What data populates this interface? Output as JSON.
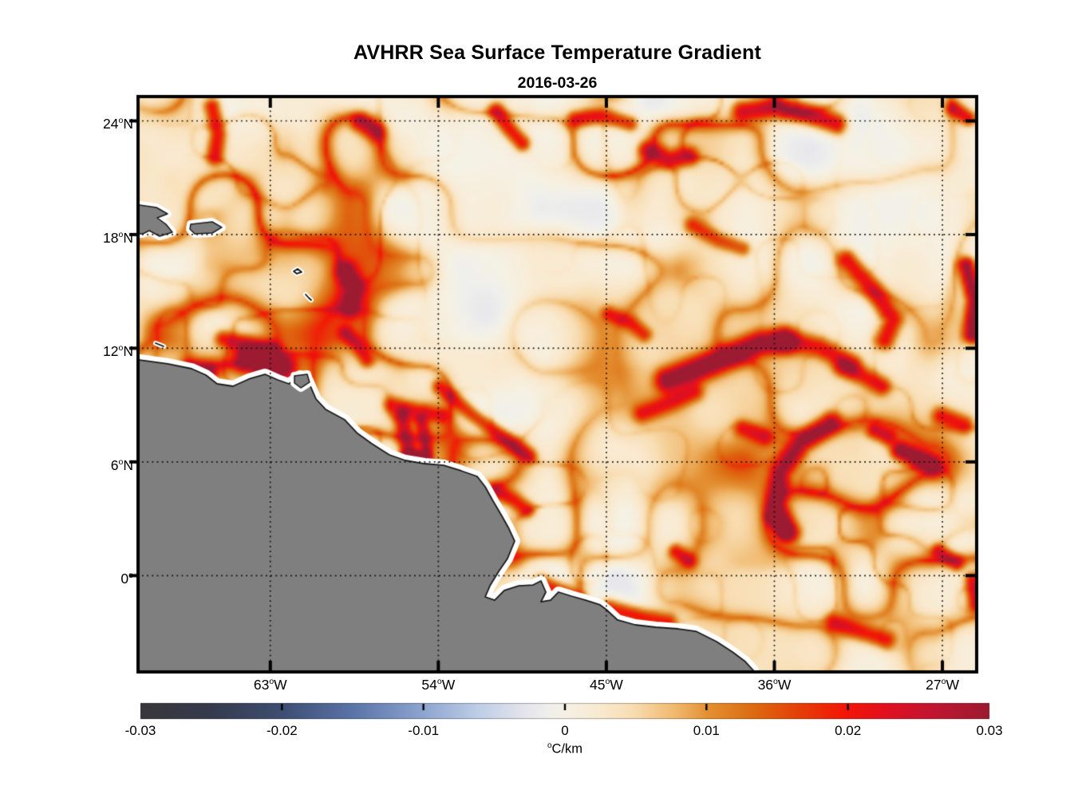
{
  "chart_data": {
    "type": "heatmap",
    "title": "AVHRR Sea Surface Temperature Gradient",
    "subtitle": "2016-03-26",
    "variable": "sea surface temperature gradient",
    "unit": {
      "sup": "o",
      "text": "C/km"
    },
    "x_axis": {
      "lon_min": -70.0,
      "lon_max": -25.25,
      "ticks": [
        {
          "value": "63",
          "sup": "o",
          "suffix": "W",
          "lon": -63
        },
        {
          "value": "54",
          "sup": "o",
          "suffix": "W",
          "lon": -54
        },
        {
          "value": "45",
          "sup": "o",
          "suffix": "W",
          "lon": -45
        },
        {
          "value": "36",
          "sup": "o",
          "suffix": "W",
          "lon": -36
        },
        {
          "value": "27",
          "sup": "o",
          "suffix": "W",
          "lon": -27
        }
      ]
    },
    "y_axis": {
      "lat_min": -5.0,
      "lat_max": 25.2,
      "ticks": [
        {
          "value": "24",
          "sup": "o",
          "suffix": "N",
          "lat": 24
        },
        {
          "value": "18",
          "sup": "o",
          "suffix": "N",
          "lat": 18
        },
        {
          "value": "12",
          "sup": "o",
          "suffix": "N",
          "lat": 12
        },
        {
          "value": "6",
          "sup": "o",
          "suffix": "N",
          "lat": 6
        },
        {
          "value": "0",
          "sup": "o",
          "suffix": "",
          "lat": 0
        }
      ]
    },
    "colorbar": {
      "min": -0.03,
      "max": 0.03,
      "ticks": [
        {
          "label": "-0.03",
          "value": -0.03
        },
        {
          "label": "-0.02",
          "value": -0.02
        },
        {
          "label": "-0.01",
          "value": -0.01
        },
        {
          "label": "0",
          "value": 0
        },
        {
          "label": "0.01",
          "value": 0.01
        },
        {
          "label": "0.02",
          "value": 0.02
        },
        {
          "label": "0.03",
          "value": 0.03
        }
      ],
      "colormap": [
        [
          0.0,
          "#38373b"
        ],
        [
          0.08,
          "#353a4c"
        ],
        [
          0.17,
          "#3e4f74"
        ],
        [
          0.25,
          "#5a74a8"
        ],
        [
          0.33,
          "#8ba3cd"
        ],
        [
          0.4,
          "#bfcfe6"
        ],
        [
          0.45,
          "#e3e3ec"
        ],
        [
          0.48,
          "#efefec"
        ],
        [
          0.5,
          "#f5f1e4"
        ],
        [
          0.54,
          "#f9ead1"
        ],
        [
          0.58,
          "#f8ddb2"
        ],
        [
          0.63,
          "#f0b96e"
        ],
        [
          0.67,
          "#e38f31"
        ],
        [
          0.72,
          "#dd6c12"
        ],
        [
          0.77,
          "#e44309"
        ],
        [
          0.83,
          "#f31507"
        ],
        [
          0.88,
          "#e01020"
        ],
        [
          0.93,
          "#c31530"
        ],
        [
          1.0,
          "#9c1b31"
        ]
      ]
    },
    "grid": {
      "style": "dotted",
      "color": "#111111"
    },
    "land_color": "#7f7f7f",
    "coast_halo_color": "#ffffff",
    "border_color": "#000000",
    "geo": {
      "mainland_coast": [
        [
          0.0,
          0.4575
        ],
        [
          0.0334,
          0.4644
        ],
        [
          0.0621,
          0.4728
        ],
        [
          0.0793,
          0.484
        ],
        [
          0.0927,
          0.4993
        ],
        [
          0.1117,
          0.5035
        ],
        [
          0.1308,
          0.4909
        ],
        [
          0.15,
          0.4826
        ],
        [
          0.1652,
          0.4923
        ],
        [
          0.1786,
          0.4993
        ],
        [
          0.192,
          0.4854
        ],
        [
          0.2015,
          0.4937
        ],
        [
          0.2111,
          0.5258
        ],
        [
          0.2225,
          0.5439
        ],
        [
          0.2455,
          0.5621
        ],
        [
          0.2607,
          0.5858
        ],
        [
          0.2779,
          0.6039
        ],
        [
          0.2989,
          0.6234
        ],
        [
          0.3181,
          0.6332
        ],
        [
          0.341,
          0.6388
        ],
        [
          0.3639,
          0.6416
        ],
        [
          0.3849,
          0.6513
        ],
        [
          0.404,
          0.6611
        ],
        [
          0.4136,
          0.6792
        ],
        [
          0.4231,
          0.7043
        ],
        [
          0.4327,
          0.728
        ],
        [
          0.4413,
          0.7503
        ],
        [
          0.4489,
          0.7741
        ],
        [
          0.4403,
          0.8047
        ],
        [
          0.4298,
          0.827
        ],
        [
          0.4193,
          0.8522
        ],
        [
          0.4136,
          0.8717
        ],
        [
          0.425,
          0.8773
        ],
        [
          0.4365,
          0.8605
        ],
        [
          0.4537,
          0.8522
        ],
        [
          0.4709,
          0.8508
        ],
        [
          0.4804,
          0.8438
        ],
        [
          0.4862,
          0.8633
        ],
        [
          0.4804,
          0.8801
        ],
        [
          0.4919,
          0.8773
        ],
        [
          0.5014,
          0.8633
        ],
        [
          0.5167,
          0.8703
        ],
        [
          0.5339,
          0.8773
        ],
        [
          0.5511,
          0.8856
        ],
        [
          0.5587,
          0.894
        ],
        [
          0.5721,
          0.9121
        ],
        [
          0.5931,
          0.9205
        ],
        [
          0.6179,
          0.9247
        ],
        [
          0.6447,
          0.9275
        ],
        [
          0.6657,
          0.9317
        ],
        [
          0.6905,
          0.9498
        ],
        [
          0.7096,
          0.9679
        ],
        [
          0.7249,
          0.9847
        ],
        [
          0.7345,
          1.0
        ]
      ],
      "mainland_close": [
        [
          0.7345,
          1.05
        ],
        [
          -0.05,
          1.05
        ],
        [
          -0.05,
          0.4575
        ]
      ],
      "islands": [
        [
          [
            -0.02,
            0.1869
          ],
          [
            0.0,
            0.1869
          ],
          [
            0.0201,
            0.1911
          ],
          [
            0.0334,
            0.2022
          ],
          [
            0.021,
            0.2092
          ],
          [
            0.0315,
            0.2204
          ],
          [
            0.0392,
            0.2343
          ],
          [
            0.0239,
            0.2413
          ],
          [
            0.0115,
            0.2315
          ],
          [
            0.0038,
            0.2371
          ],
          [
            -0.02,
            0.2371
          ]
        ],
        [
          [
            0.0611,
            0.2204
          ],
          [
            0.0869,
            0.2162
          ],
          [
            0.0984,
            0.2259
          ],
          [
            0.0869,
            0.2357
          ],
          [
            0.0659,
            0.2371
          ],
          [
            0.0602,
            0.2287
          ]
        ],
        [
          [
            0.1853,
            0.4854
          ],
          [
            0.2006,
            0.4825
          ],
          [
            0.2034,
            0.4965
          ],
          [
            0.1929,
            0.5063
          ],
          [
            0.1853,
            0.4979
          ]
        ]
      ],
      "islets": [
        [
          [
            0.0191,
            0.4282
          ],
          [
            0.0287,
            0.4338
          ]
        ],
        [
          [
            0.1844,
            0.3026
          ],
          [
            0.1891,
            0.2985
          ],
          [
            0.1939,
            0.304
          ],
          [
            0.1882,
            0.3068
          ],
          [
            0.1844,
            0.3026
          ]
        ],
        [
          [
            0.1987,
            0.3431
          ],
          [
            0.2024,
            0.349
          ],
          [
            0.2053,
            0.3529
          ]
        ]
      ]
    },
    "fronts": [
      {
        "pts": [
          [
            0.128,
            0.452
          ],
          [
            0.15,
            0.459
          ],
          [
            0.17,
            0.468
          ]
        ],
        "w": 0.016,
        "v": 0.03
      },
      {
        "pts": [
          [
            0.146,
            0.46
          ],
          [
            0.16,
            0.468
          ]
        ],
        "w": 0.009,
        "v": 0.04
      },
      {
        "pts": [
          [
            0.06,
            0.472
          ],
          [
            0.079,
            0.477
          ]
        ],
        "w": 0.011,
        "v": 0.028
      },
      {
        "pts": [
          [
            0.098,
            0.418
          ],
          [
            0.128,
            0.428
          ],
          [
            0.158,
            0.437
          ]
        ],
        "w": 0.01,
        "v": 0.017
      },
      {
        "pts": [
          [
            0.245,
            0.3
          ],
          [
            0.256,
            0.33
          ],
          [
            0.25,
            0.362
          ]
        ],
        "w": 0.012,
        "v": 0.022
      },
      {
        "pts": [
          [
            0.085,
            0.012
          ],
          [
            0.092,
            0.06
          ],
          [
            0.088,
            0.1
          ]
        ],
        "w": 0.01,
        "v": 0.019
      },
      {
        "pts": [
          [
            0.262,
            0.04
          ],
          [
            0.28,
            0.056
          ]
        ],
        "w": 0.011,
        "v": 0.019
      },
      {
        "pts": [
          [
            0.425,
            0.02
          ],
          [
            0.44,
            0.05
          ],
          [
            0.456,
            0.076
          ]
        ],
        "w": 0.01,
        "v": 0.02
      },
      {
        "pts": [
          [
            0.52,
            0.035
          ],
          [
            0.552,
            0.028
          ],
          [
            0.585,
            0.042
          ]
        ],
        "w": 0.01,
        "v": 0.018
      },
      {
        "pts": [
          [
            0.605,
            0.088
          ],
          [
            0.632,
            0.104
          ],
          [
            0.656,
            0.099
          ]
        ],
        "w": 0.011,
        "v": 0.018
      },
      {
        "pts": [
          [
            0.72,
            0.02
          ],
          [
            0.76,
            0.012
          ],
          [
            0.8,
            0.026
          ],
          [
            0.832,
            0.042
          ]
        ],
        "w": 0.013,
        "v": 0.023
      },
      {
        "pts": [
          [
            0.972,
            0.015
          ],
          [
            0.99,
            0.032
          ]
        ],
        "w": 0.009,
        "v": 0.02
      },
      {
        "pts": [
          [
            0.845,
            0.28
          ],
          [
            0.875,
            0.33
          ],
          [
            0.9,
            0.385
          ],
          [
            0.89,
            0.42
          ]
        ],
        "w": 0.012,
        "v": 0.02
      },
      {
        "pts": [
          [
            0.988,
            0.29
          ],
          [
            0.998,
            0.35
          ],
          [
            0.995,
            0.41
          ]
        ],
        "w": 0.01,
        "v": 0.03
      },
      {
        "pts": [
          [
            0.63,
            0.49
          ],
          [
            0.66,
            0.474
          ],
          [
            0.7,
            0.45
          ],
          [
            0.74,
            0.426
          ],
          [
            0.77,
            0.421
          ]
        ],
        "w": 0.014,
        "v": 0.029
      },
      {
        "pts": [
          [
            0.77,
            0.421
          ],
          [
            0.812,
            0.432
          ],
          [
            0.85,
            0.462
          ]
        ],
        "w": 0.012,
        "v": 0.017
      },
      {
        "pts": [
          [
            0.6,
            0.548
          ],
          [
            0.632,
            0.53
          ],
          [
            0.662,
            0.511
          ]
        ],
        "w": 0.011,
        "v": 0.015
      },
      {
        "pts": [
          [
            0.825,
            0.565
          ],
          [
            0.79,
            0.6
          ],
          [
            0.765,
            0.65
          ],
          [
            0.76,
            0.71
          ],
          [
            0.776,
            0.756
          ]
        ],
        "w": 0.012,
        "v": 0.024
      },
      {
        "pts": [
          [
            0.757,
            0.73
          ],
          [
            0.769,
            0.753
          ]
        ],
        "w": 0.009,
        "v": 0.029
      },
      {
        "pts": [
          [
            0.909,
            0.613
          ],
          [
            0.93,
            0.627
          ],
          [
            0.946,
            0.638
          ]
        ],
        "w": 0.011,
        "v": 0.03
      },
      {
        "pts": [
          [
            0.878,
            0.578
          ],
          [
            0.894,
            0.589
          ]
        ],
        "w": 0.01,
        "v": 0.019
      },
      {
        "pts": [
          [
            0.84,
            0.468
          ],
          [
            0.866,
            0.484
          ],
          [
            0.886,
            0.5
          ]
        ],
        "w": 0.011,
        "v": 0.017
      },
      {
        "pts": [
          [
            0.3,
            0.533
          ],
          [
            0.33,
            0.544
          ],
          [
            0.36,
            0.551
          ]
        ],
        "w": 0.01,
        "v": 0.016
      },
      {
        "pts": [
          [
            0.245,
            0.408
          ],
          [
            0.26,
            0.43
          ],
          [
            0.27,
            0.455
          ]
        ],
        "w": 0.009,
        "v": 0.015
      },
      {
        "pts": [
          [
            0.312,
            0.553
          ],
          [
            0.317,
            0.592
          ],
          [
            0.321,
            0.617
          ]
        ],
        "w": 0.01,
        "v": 0.021
      },
      {
        "pts": [
          [
            0.318,
            0.622
          ],
          [
            0.342,
            0.624
          ]
        ],
        "w": 0.007,
        "v": 0.028
      },
      {
        "pts": [
          [
            0.335,
            0.562
          ],
          [
            0.341,
            0.608
          ]
        ],
        "w": 0.008,
        "v": 0.017
      },
      {
        "pts": [
          [
            0.357,
            0.502
          ],
          [
            0.396,
            0.55
          ],
          [
            0.432,
            0.588
          ],
          [
            0.464,
            0.622
          ]
        ],
        "w": 0.009,
        "v": 0.017
      },
      {
        "pts": [
          [
            0.425,
            0.685
          ],
          [
            0.446,
            0.7
          ],
          [
            0.461,
            0.716
          ]
        ],
        "w": 0.01,
        "v": 0.018
      },
      {
        "pts": [
          [
            0.48,
            0.845
          ],
          [
            0.502,
            0.86
          ],
          [
            0.522,
            0.874
          ]
        ],
        "w": 0.011,
        "v": 0.02
      },
      {
        "pts": [
          [
            0.56,
            0.888
          ],
          [
            0.6,
            0.904
          ],
          [
            0.63,
            0.914
          ]
        ],
        "w": 0.011,
        "v": 0.019
      },
      {
        "pts": [
          [
            0.64,
            0.79
          ],
          [
            0.656,
            0.806
          ]
        ],
        "w": 0.009,
        "v": 0.017
      },
      {
        "pts": [
          [
            0.83,
            0.915
          ],
          [
            0.862,
            0.93
          ],
          [
            0.892,
            0.944
          ]
        ],
        "w": 0.011,
        "v": 0.017
      },
      {
        "pts": [
          [
            0.955,
            0.79
          ],
          [
            0.976,
            0.81
          ]
        ],
        "w": 0.009,
        "v": 0.018
      },
      {
        "pts": [
          [
            0.56,
            0.375
          ],
          [
            0.586,
            0.39
          ],
          [
            0.602,
            0.41
          ]
        ],
        "w": 0.009,
        "v": 0.014
      },
      {
        "pts": [
          [
            0.66,
            0.22
          ],
          [
            0.692,
            0.246
          ],
          [
            0.72,
            0.26
          ]
        ],
        "w": 0.01,
        "v": 0.014
      },
      {
        "pts": [
          [
            0.72,
            0.575
          ],
          [
            0.746,
            0.59
          ]
        ],
        "w": 0.01,
        "v": 0.015
      },
      {
        "pts": [
          [
            0.958,
            0.553
          ],
          [
            0.985,
            0.568
          ]
        ],
        "w": 0.011,
        "v": 0.017
      },
      {
        "pts": [
          [
            0.995,
            0.84
          ],
          [
            0.999,
            0.88
          ]
        ],
        "w": 0.009,
        "v": 0.02
      }
    ]
  }
}
